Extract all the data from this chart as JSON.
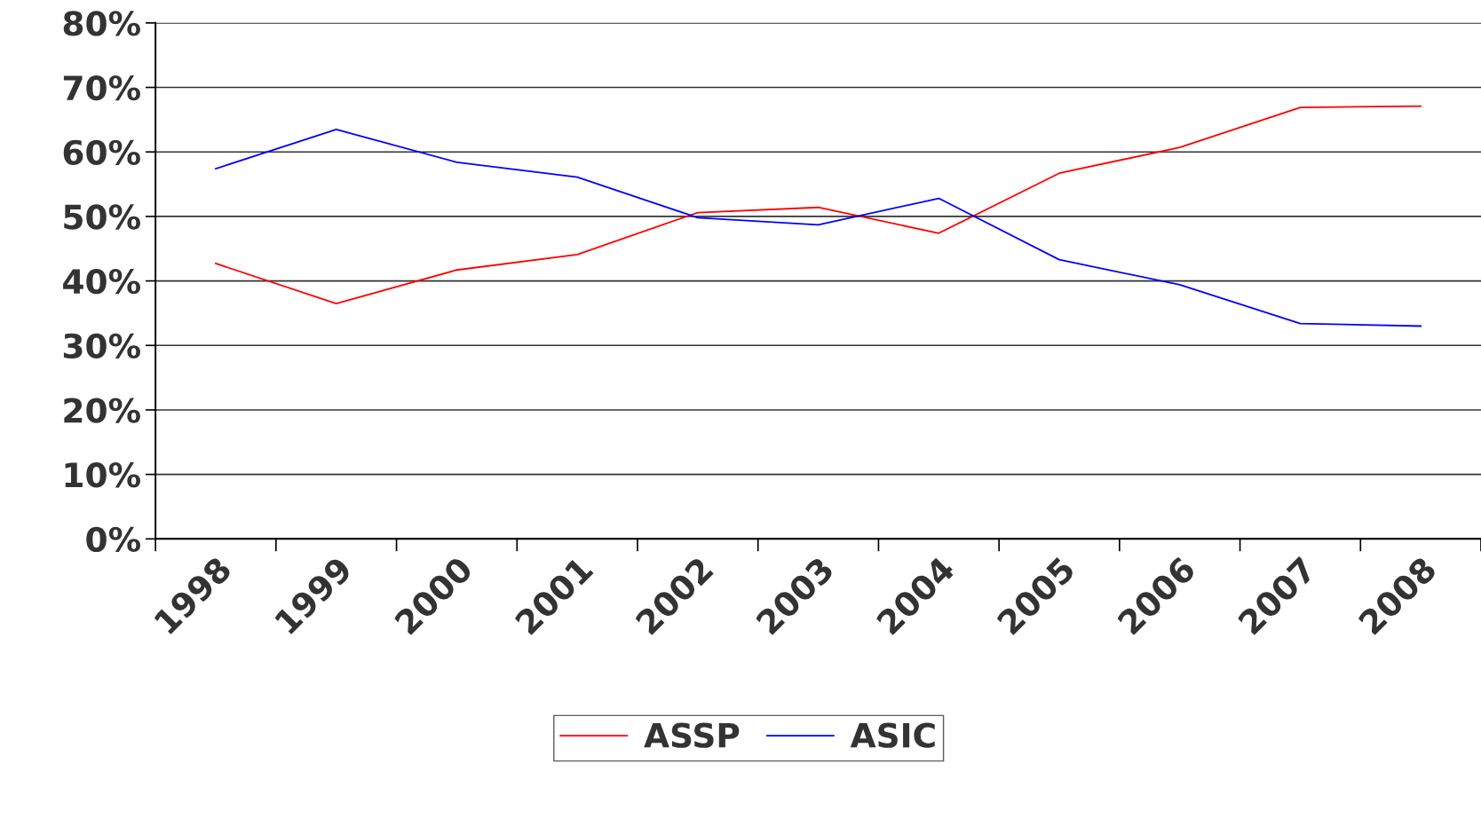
{
  "chart_data": {
    "type": "line",
    "categories": [
      "1998",
      "1999",
      "2000",
      "2001",
      "2002",
      "2003",
      "2004",
      "2005",
      "2006",
      "2007",
      "2008"
    ],
    "series": [
      {
        "name": "ASSP",
        "color": "#ff0000",
        "values": [
          42.7,
          36.5,
          41.7,
          44.1,
          50.6,
          51.4,
          47.4,
          56.7,
          60.7,
          66.9,
          67.1
        ]
      },
      {
        "name": "ASIC",
        "color": "#0000ff",
        "values": [
          57.4,
          63.5,
          58.4,
          56.1,
          49.8,
          48.7,
          52.8,
          43.3,
          39.4,
          33.4,
          33.0
        ]
      }
    ],
    "ylim": [
      0,
      80
    ],
    "yticks": [
      {
        "value": 0,
        "label": "0%"
      },
      {
        "value": 10,
        "label": "10%"
      },
      {
        "value": 20,
        "label": "20%"
      },
      {
        "value": 30,
        "label": "30%"
      },
      {
        "value": 40,
        "label": "40%"
      },
      {
        "value": 50,
        "label": "50%"
      },
      {
        "value": 60,
        "label": "60%"
      },
      {
        "value": 70,
        "label": "70%"
      },
      {
        "value": 80,
        "label": "80%"
      }
    ],
    "grid": "y",
    "legend": "bottom",
    "marker": "none",
    "line_style": "solid"
  }
}
